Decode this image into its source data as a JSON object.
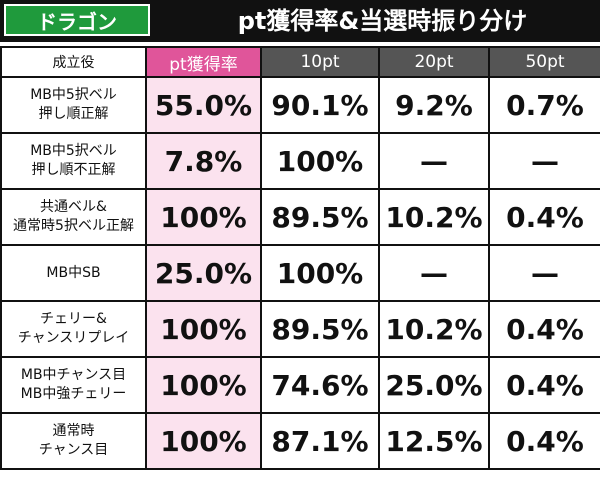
{
  "header": {
    "tag": "ドラゴン",
    "title": "pt獲得率&当選時振り分け"
  },
  "table": {
    "columns": [
      "成立役",
      "pt獲得率",
      "10pt",
      "20pt",
      "50pt"
    ],
    "rows": [
      {
        "label": [
          "MB中5択ベル",
          "押し順正解"
        ],
        "cells": [
          "55.0%",
          "90.1%",
          "9.2%",
          "0.7%"
        ]
      },
      {
        "label": [
          "MB中5択ベル",
          "押し順不正解"
        ],
        "cells": [
          "7.8%",
          "100%",
          "—",
          "—"
        ]
      },
      {
        "label": [
          "共通ベル&",
          "通常時5択ベル正解"
        ],
        "cells": [
          "100%",
          "89.5%",
          "10.2%",
          "0.4%"
        ]
      },
      {
        "label": [
          "MB中SB"
        ],
        "cells": [
          "25.0%",
          "100%",
          "—",
          "—"
        ]
      },
      {
        "label": [
          "チェリー&",
          "チャンスリプレイ"
        ],
        "cells": [
          "100%",
          "89.5%",
          "10.2%",
          "0.4%"
        ]
      },
      {
        "label": [
          "MB中チャンス目",
          "MB中強チェリー"
        ],
        "cells": [
          "100%",
          "74.6%",
          "25.0%",
          "0.4%"
        ]
      },
      {
        "label": [
          "通常時",
          "チャンス目"
        ],
        "cells": [
          "100%",
          "87.1%",
          "12.5%",
          "0.4%"
        ]
      }
    ]
  }
}
